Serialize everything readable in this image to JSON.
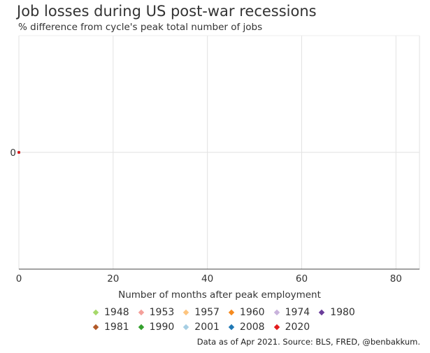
{
  "chart_data": {
    "type": "line",
    "title": "Job losses during US post-war recessions",
    "subtitle": "% difference from cycle's peak total number of jobs",
    "xlabel": "Number of months after peak employment",
    "ylabel": "",
    "xlim": [
      0,
      85
    ],
    "ylim": [
      -1,
      1
    ],
    "x_ticks": [
      0,
      20,
      40,
      60,
      80
    ],
    "y_ticks": [
      0
    ],
    "series": [
      {
        "name": "1948",
        "color": "#a6d96a",
        "x": [
          0
        ],
        "values": [
          0
        ]
      },
      {
        "name": "1953",
        "color": "#f4a09a",
        "x": [
          0
        ],
        "values": [
          0
        ]
      },
      {
        "name": "1957",
        "color": "#fdc57f",
        "x": [
          0
        ],
        "values": [
          0
        ]
      },
      {
        "name": "1960",
        "color": "#f58a1f",
        "x": [
          0
        ],
        "values": [
          0
        ]
      },
      {
        "name": "1974",
        "color": "#c9b3dc",
        "x": [
          0
        ],
        "values": [
          0
        ]
      },
      {
        "name": "1980",
        "color": "#6a3d9a",
        "x": [
          0
        ],
        "values": [
          0
        ]
      },
      {
        "name": "1981",
        "color": "#b15928",
        "x": [
          0
        ],
        "values": [
          0
        ]
      },
      {
        "name": "1990",
        "color": "#33a02c",
        "x": [
          0
        ],
        "values": [
          0
        ]
      },
      {
        "name": "2001",
        "color": "#a6cee3",
        "x": [
          0
        ],
        "values": [
          0
        ]
      },
      {
        "name": "2008",
        "color": "#1f78b4",
        "x": [
          0
        ],
        "values": [
          0
        ]
      },
      {
        "name": "2020",
        "color": "#e31a1c",
        "x": [
          0
        ],
        "values": [
          0
        ]
      }
    ],
    "grid": true,
    "source": "Data as of Apr 2021. Source: BLS, FRED, @benbakkum."
  }
}
